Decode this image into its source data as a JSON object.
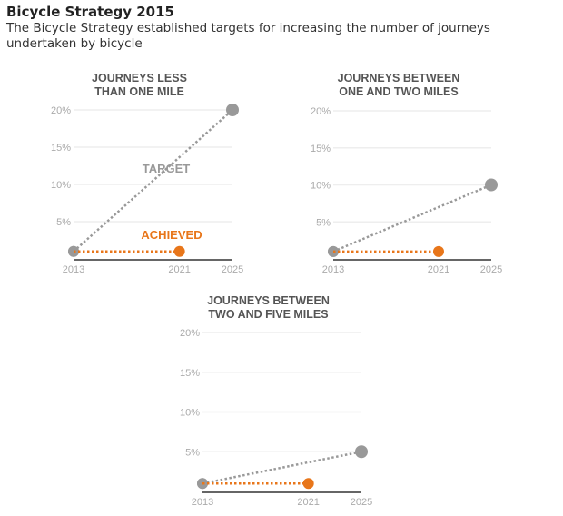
{
  "title": "Bicycle Strategy 2015",
  "subtitle": "The Bicycle Strategy established targets for increasing the number of journeys undertaken by bicycle",
  "colors": {
    "target": "#999999",
    "achieved": "#e8761a",
    "grid": "#eeeeee",
    "axis": "#666666"
  },
  "chart_data": [
    {
      "type": "line",
      "title": [
        "JOURNEYS LESS",
        "THAN ONE MILE"
      ],
      "x": [
        2013,
        2021,
        2025
      ],
      "xticks": [
        "2013",
        "2021",
        "2025"
      ],
      "yticks": [
        "5%",
        "10%",
        "15%",
        "20%"
      ],
      "ylim": [
        0,
        20
      ],
      "grid": true,
      "series": [
        {
          "name": "TARGET",
          "x": [
            2013,
            2025
          ],
          "values": [
            1,
            20
          ]
        },
        {
          "name": "ACHIEVED",
          "x": [
            2013,
            2021
          ],
          "values": [
            1,
            1
          ]
        }
      ],
      "show_labels": true
    },
    {
      "type": "line",
      "title": [
        "JOURNEYS BETWEEN",
        "ONE AND TWO MILES"
      ],
      "x": [
        2013,
        2021,
        2025
      ],
      "xticks": [
        "2013",
        "2021",
        "2025"
      ],
      "yticks": [
        "5%",
        "10%",
        "15%",
        "20%"
      ],
      "ylim": [
        0,
        20
      ],
      "grid": true,
      "series": [
        {
          "x": [
            2013,
            2025
          ],
          "values": [
            1,
            10
          ]
        },
        {
          "x": [
            2013,
            2021
          ],
          "values": [
            1,
            1
          ]
        }
      ]
    },
    {
      "type": "line",
      "title": [
        "JOURNEYS BETWEEN",
        "TWO AND FIVE MILES"
      ],
      "x": [
        2013,
        2021,
        2025
      ],
      "xticks": [
        "2013",
        "2021",
        "2025"
      ],
      "yticks": [
        "5%",
        "10%",
        "15%",
        "20%"
      ],
      "ylim": [
        0,
        20
      ],
      "grid": true,
      "series": [
        {
          "x": [
            2013,
            2025
          ],
          "values": [
            1,
            5
          ]
        },
        {
          "x": [
            2013,
            2021
          ],
          "values": [
            1,
            1
          ]
        }
      ]
    }
  ]
}
